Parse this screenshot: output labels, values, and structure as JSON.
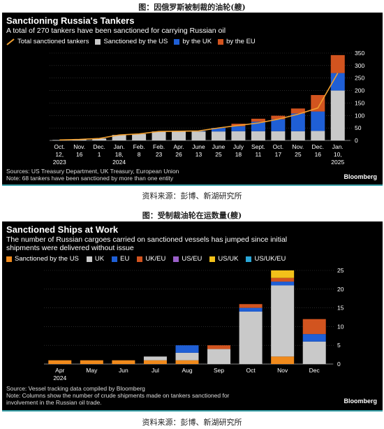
{
  "fig1": {
    "caption": "图：因俄罗斯被制裁的油轮(艘)",
    "title": "Sanctioning Russia's Tankers",
    "subtitle": "A total of 270 tankers have been sanctioned for carrying Russian oil",
    "legend": [
      "Total sanctioned tankers",
      "Sanctioned by the US",
      "by the UK",
      "by the EU"
    ],
    "sources": "Sources: US Treasury Department, UK Treasury, European Union",
    "note": "Note: 68 tankers have been sanctioned by more than one entity",
    "brand": "Bloomberg",
    "source_caption": "资料来源：彭博、新湖研究所"
  },
  "fig2": {
    "caption": "图：受制裁油轮在运数量(艘)",
    "title": "Sanctioned Ships at Work",
    "subtitle_line1": "The number of Russian cargoes carried on sanctioned vessels has jumped since initial",
    "subtitle_line2": "shipments were delivered without issue",
    "legend": [
      "Sanctioned by the US",
      "UK",
      "EU",
      "UK/EU",
      "US/EU",
      "US/UK",
      "US/UK/EU"
    ],
    "source": "Source: Vessel tracking data compiled by Bloomberg",
    "note_line1": "Note: Columns show the number of crude shipments made on tankers sanctioned for",
    "note_line2": "involvement in the Russian oil trade.",
    "brand": "Bloomberg",
    "source_caption": "资料来源：彭博、新湖研究所"
  },
  "colors": {
    "us": "#c9c9c9",
    "uk": "#1f5fd6",
    "eu": "#d2541f",
    "total": "#f2a030",
    "us2": "#f08a1c",
    "uk2": "#c9c9c9",
    "eu2": "#1f5fd6",
    "ukeu": "#d2541f",
    "useu": "#9a5fc9",
    "usuk": "#f2c11a",
    "usukeu": "#2aa7d8"
  },
  "chart_data": [
    {
      "type": "bar",
      "stacked": true,
      "categories": [
        "Oct. 12, 2023",
        "Nov. 16",
        "Dec. 1",
        "Jan. 18, 2024",
        "Feb. 8",
        "Feb. 23",
        "Apr. 26",
        "Jun. 13",
        "Jun. 25",
        "Jul. 18",
        "Sep. 11",
        "Oct. 17",
        "Nov. 25",
        "Dec. 16",
        "Jan. 10, 2025"
      ],
      "tick_labels": [
        [
          "Oct.",
          "12,",
          "2023"
        ],
        [
          "Nov.",
          "16"
        ],
        [
          "Dec.",
          "1"
        ],
        [
          "Jan.",
          "18,",
          "2024"
        ],
        [
          "Feb.",
          "8"
        ],
        [
          "Feb.",
          "23"
        ],
        [
          "Apr.",
          "26"
        ],
        [
          "June",
          "13"
        ],
        [
          "June",
          "25"
        ],
        [
          "July",
          "18"
        ],
        [
          "Sept.",
          "11"
        ],
        [
          "Oct.",
          "17"
        ],
        [
          "Nov.",
          "25"
        ],
        [
          "Dec.",
          "16"
        ],
        [
          "Jan.",
          "10,",
          "2025"
        ]
      ],
      "series": [
        {
          "name": "Sanctioned by the US",
          "values": [
            2,
            4,
            8,
            22,
            26,
            36,
            37,
            36,
            36,
            37,
            37,
            37,
            37,
            38,
            200
          ]
        },
        {
          "name": "by the UK",
          "values": [
            0,
            0,
            0,
            0,
            0,
            0,
            0,
            2,
            14,
            20,
            38,
            48,
            71,
            78,
            70
          ]
        },
        {
          "name": "by the EU",
          "values": [
            0,
            0,
            0,
            0,
            0,
            0,
            0,
            0,
            0,
            10,
            12,
            14,
            20,
            66,
            72
          ]
        }
      ],
      "line": {
        "name": "Total sanctioned tankers",
        "values": [
          2,
          4,
          8,
          22,
          26,
          36,
          37,
          38,
          50,
          60,
          70,
          85,
          105,
          130,
          270
        ]
      },
      "ylim": [
        0,
        350
      ],
      "yticks": [
        0,
        50,
        100,
        150,
        200,
        250,
        300,
        350
      ]
    },
    {
      "type": "bar",
      "stacked": true,
      "categories": [
        "Apr 2024",
        "May",
        "Jun",
        "Jul",
        "Aug",
        "Sep",
        "Oct",
        "Nov",
        "Dec"
      ],
      "tick_labels": [
        [
          "Apr",
          "2024"
        ],
        [
          "May"
        ],
        [
          "Jun"
        ],
        [
          "Jul"
        ],
        [
          "Aug"
        ],
        [
          "Sep"
        ],
        [
          "Oct"
        ],
        [
          "Nov"
        ],
        [
          "Dec"
        ]
      ],
      "series": [
        {
          "name": "Sanctioned by the US",
          "values": [
            1,
            1,
            1,
            1,
            1,
            0,
            0,
            2,
            0
          ]
        },
        {
          "name": "UK",
          "values": [
            0,
            0,
            0,
            1,
            2,
            4,
            14,
            19,
            6
          ]
        },
        {
          "name": "EU",
          "values": [
            0,
            0,
            0,
            0,
            2,
            0,
            1,
            1,
            2
          ]
        },
        {
          "name": "UK/EU",
          "values": [
            0,
            0,
            0,
            0,
            0,
            1,
            1,
            1,
            4
          ]
        },
        {
          "name": "US/EU",
          "values": [
            0,
            0,
            0,
            0,
            0,
            0,
            0,
            0,
            0
          ]
        },
        {
          "name": "US/UK",
          "values": [
            0,
            0,
            0,
            0,
            0,
            0,
            0,
            2,
            0
          ]
        },
        {
          "name": "US/UK/EU",
          "values": [
            0,
            0,
            0,
            0,
            0,
            0,
            0,
            0,
            0
          ]
        }
      ],
      "ylim": [
        0,
        25
      ],
      "yticks": [
        0,
        5,
        10,
        15,
        20,
        25
      ]
    }
  ]
}
